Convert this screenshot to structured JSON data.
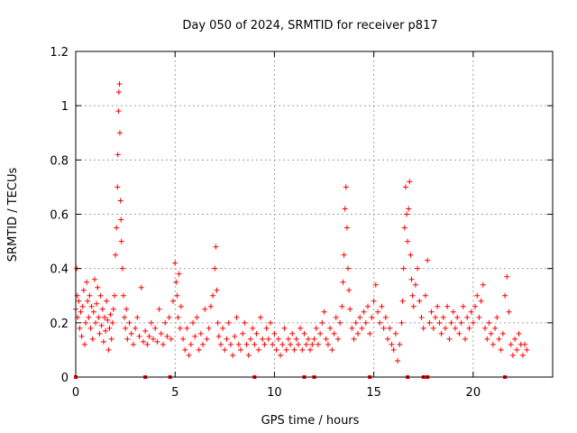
{
  "chart_data": {
    "type": "scatter",
    "title": "Day 050 of 2024, SRMTID for receiver p817",
    "xlabel": "GPS time / hours",
    "ylabel": "SRMTID / TECUs",
    "xlim": [
      0,
      24
    ],
    "ylim": [
      0,
      1.2
    ],
    "xticks": [
      0,
      5,
      10,
      15,
      20
    ],
    "xtick_labels": [
      "0",
      "5",
      "10",
      "15",
      "20"
    ],
    "yticks": [
      0,
      0.2,
      0.4,
      0.6,
      0.8,
      1,
      1.2
    ],
    "ytick_labels": [
      "0",
      "0.2",
      "0.4",
      "0.6",
      "0.8",
      "1",
      "1.2"
    ],
    "grid": true,
    "marker": "plus",
    "color": "#ff0000",
    "series": [
      {
        "name": "SRMTID",
        "points": [
          [
            0.0,
            0.25
          ],
          [
            0.05,
            0.4
          ],
          [
            0.08,
            0.3
          ],
          [
            0.1,
            0.22
          ],
          [
            0.15,
            0.28
          ],
          [
            0.2,
            0.18
          ],
          [
            0.25,
            0.24
          ],
          [
            0.3,
            0.15
          ],
          [
            0.35,
            0.26
          ],
          [
            0.4,
            0.32
          ],
          [
            0.45,
            0.12
          ],
          [
            0.5,
            0.2
          ],
          [
            0.55,
            0.35
          ],
          [
            0.6,
            0.28
          ],
          [
            0.65,
            0.22
          ],
          [
            0.7,
            0.3
          ],
          [
            0.75,
            0.18
          ],
          [
            0.8,
            0.26
          ],
          [
            0.85,
            0.14
          ],
          [
            0.9,
            0.24
          ],
          [
            0.95,
            0.36
          ],
          [
            1.0,
            0.2
          ],
          [
            1.05,
            0.27
          ],
          [
            1.1,
            0.33
          ],
          [
            1.15,
            0.22
          ],
          [
            1.2,
            0.16
          ],
          [
            1.25,
            0.3
          ],
          [
            1.3,
            0.19
          ],
          [
            1.35,
            0.25
          ],
          [
            1.4,
            0.13
          ],
          [
            1.45,
            0.22
          ],
          [
            1.5,
            0.17
          ],
          [
            1.55,
            0.28
          ],
          [
            1.6,
            0.21
          ],
          [
            1.65,
            0.1
          ],
          [
            1.7,
            0.18
          ],
          [
            1.75,
            0.23
          ],
          [
            1.8,
            0.14
          ],
          [
            1.85,
            0.2
          ],
          [
            1.9,
            0.25
          ],
          [
            1.95,
            0.3
          ],
          [
            2.0,
            0.45
          ],
          [
            2.05,
            0.55
          ],
          [
            2.1,
            0.7
          ],
          [
            2.12,
            0.82
          ],
          [
            2.15,
            0.98
          ],
          [
            2.17,
            1.05
          ],
          [
            2.2,
            1.08
          ],
          [
            2.22,
            0.9
          ],
          [
            2.25,
            0.65
          ],
          [
            2.28,
            0.58
          ],
          [
            2.3,
            0.5
          ],
          [
            2.35,
            0.4
          ],
          [
            2.4,
            0.3
          ],
          [
            2.45,
            0.22
          ],
          [
            2.5,
            0.18
          ],
          [
            2.55,
            0.25
          ],
          [
            2.6,
            0.14
          ],
          [
            2.7,
            0.2
          ],
          [
            2.8,
            0.16
          ],
          [
            2.9,
            0.12
          ],
          [
            3.0,
            0.18
          ],
          [
            3.1,
            0.22
          ],
          [
            3.2,
            0.15
          ],
          [
            3.3,
            0.33
          ],
          [
            3.4,
            0.13
          ],
          [
            3.5,
            0.17
          ],
          [
            3.6,
            0.12
          ],
          [
            3.7,
            0.15
          ],
          [
            3.8,
            0.2
          ],
          [
            3.9,
            0.14
          ],
          [
            4.0,
            0.18
          ],
          [
            4.1,
            0.13
          ],
          [
            4.2,
            0.25
          ],
          [
            4.3,
            0.16
          ],
          [
            4.4,
            0.12
          ],
          [
            4.5,
            0.2
          ],
          [
            4.6,
            0.15
          ],
          [
            4.7,
            0.22
          ],
          [
            4.8,
            0.14
          ],
          [
            4.9,
            0.28
          ],
          [
            5.0,
            0.42
          ],
          [
            5.05,
            0.35
          ],
          [
            5.1,
            0.3
          ],
          [
            5.15,
            0.22
          ],
          [
            5.2,
            0.38
          ],
          [
            5.25,
            0.18
          ],
          [
            5.3,
            0.26
          ],
          [
            5.4,
            0.14
          ],
          [
            5.5,
            0.1
          ],
          [
            5.6,
            0.18
          ],
          [
            5.7,
            0.08
          ],
          [
            5.8,
            0.12
          ],
          [
            5.9,
            0.2
          ],
          [
            6.0,
            0.15
          ],
          [
            6.1,
            0.22
          ],
          [
            6.2,
            0.1
          ],
          [
            6.3,
            0.16
          ],
          [
            6.4,
            0.12
          ],
          [
            6.5,
            0.25
          ],
          [
            6.6,
            0.14
          ],
          [
            6.7,
            0.18
          ],
          [
            6.8,
            0.26
          ],
          [
            6.9,
            0.3
          ],
          [
            7.0,
            0.4
          ],
          [
            7.05,
            0.48
          ],
          [
            7.1,
            0.32
          ],
          [
            7.15,
            0.2
          ],
          [
            7.2,
            0.15
          ],
          [
            7.3,
            0.12
          ],
          [
            7.4,
            0.18
          ],
          [
            7.5,
            0.1
          ],
          [
            7.6,
            0.14
          ],
          [
            7.7,
            0.2
          ],
          [
            7.8,
            0.12
          ],
          [
            7.9,
            0.08
          ],
          [
            8.0,
            0.15
          ],
          [
            8.1,
            0.22
          ],
          [
            8.2,
            0.12
          ],
          [
            8.3,
            0.1
          ],
          [
            8.4,
            0.16
          ],
          [
            8.5,
            0.2
          ],
          [
            8.6,
            0.12
          ],
          [
            8.7,
            0.08
          ],
          [
            8.8,
            0.14
          ],
          [
            8.9,
            0.18
          ],
          [
            9.0,
            0.12
          ],
          [
            9.1,
            0.16
          ],
          [
            9.2,
            0.1
          ],
          [
            9.3,
            0.22
          ],
          [
            9.4,
            0.14
          ],
          [
            9.5,
            0.12
          ],
          [
            9.6,
            0.18
          ],
          [
            9.7,
            0.14
          ],
          [
            9.8,
            0.2
          ],
          [
            9.9,
            0.12
          ],
          [
            10.0,
            0.16
          ],
          [
            10.1,
            0.1
          ],
          [
            10.2,
            0.14
          ],
          [
            10.3,
            0.08
          ],
          [
            10.4,
            0.12
          ],
          [
            10.5,
            0.18
          ],
          [
            10.6,
            0.1
          ],
          [
            10.7,
            0.14
          ],
          [
            10.8,
            0.12
          ],
          [
            10.9,
            0.16
          ],
          [
            11.0,
            0.1
          ],
          [
            11.1,
            0.14
          ],
          [
            11.2,
            0.12
          ],
          [
            11.3,
            0.18
          ],
          [
            11.4,
            0.1
          ],
          [
            11.5,
            0.16
          ],
          [
            11.6,
            0.12
          ],
          [
            11.7,
            0.14
          ],
          [
            11.8,
            0.1
          ],
          [
            11.9,
            0.12
          ],
          [
            12.0,
            0.14
          ],
          [
            12.1,
            0.18
          ],
          [
            12.2,
            0.12
          ],
          [
            12.3,
            0.16
          ],
          [
            12.4,
            0.2
          ],
          [
            12.5,
            0.24
          ],
          [
            12.6,
            0.14
          ],
          [
            12.7,
            0.12
          ],
          [
            12.8,
            0.18
          ],
          [
            12.9,
            0.1
          ],
          [
            13.0,
            0.16
          ],
          [
            13.1,
            0.22
          ],
          [
            13.2,
            0.14
          ],
          [
            13.3,
            0.2
          ],
          [
            13.4,
            0.26
          ],
          [
            13.45,
            0.35
          ],
          [
            13.5,
            0.45
          ],
          [
            13.55,
            0.62
          ],
          [
            13.6,
            0.7
          ],
          [
            13.65,
            0.55
          ],
          [
            13.7,
            0.4
          ],
          [
            13.75,
            0.32
          ],
          [
            13.8,
            0.25
          ],
          [
            13.9,
            0.18
          ],
          [
            14.0,
            0.14
          ],
          [
            14.1,
            0.2
          ],
          [
            14.2,
            0.16
          ],
          [
            14.3,
            0.22
          ],
          [
            14.4,
            0.18
          ],
          [
            14.5,
            0.24
          ],
          [
            14.6,
            0.2
          ],
          [
            14.7,
            0.26
          ],
          [
            14.8,
            0.16
          ],
          [
            14.9,
            0.22
          ],
          [
            15.0,
            0.28
          ],
          [
            15.1,
            0.34
          ],
          [
            15.2,
            0.24
          ],
          [
            15.3,
            0.2
          ],
          [
            15.4,
            0.26
          ],
          [
            15.5,
            0.18
          ],
          [
            15.6,
            0.22
          ],
          [
            15.7,
            0.14
          ],
          [
            15.8,
            0.18
          ],
          [
            15.9,
            0.12
          ],
          [
            16.0,
            0.1
          ],
          [
            16.1,
            0.16
          ],
          [
            16.2,
            0.06
          ],
          [
            16.3,
            0.12
          ],
          [
            16.4,
            0.2
          ],
          [
            16.45,
            0.28
          ],
          [
            16.5,
            0.4
          ],
          [
            16.55,
            0.55
          ],
          [
            16.6,
            0.7
          ],
          [
            16.65,
            0.6
          ],
          [
            16.7,
            0.5
          ],
          [
            16.75,
            0.62
          ],
          [
            16.8,
            0.72
          ],
          [
            16.85,
            0.45
          ],
          [
            16.9,
            0.36
          ],
          [
            16.95,
            0.3
          ],
          [
            17.0,
            0.26
          ],
          [
            17.1,
            0.34
          ],
          [
            17.2,
            0.4
          ],
          [
            17.3,
            0.28
          ],
          [
            17.4,
            0.22
          ],
          [
            17.5,
            0.18
          ],
          [
            17.6,
            0.3
          ],
          [
            17.7,
            0.43
          ],
          [
            17.8,
            0.2
          ],
          [
            17.9,
            0.24
          ],
          [
            18.0,
            0.18
          ],
          [
            18.1,
            0.22
          ],
          [
            18.2,
            0.26
          ],
          [
            18.3,
            0.2
          ],
          [
            18.4,
            0.16
          ],
          [
            18.5,
            0.22
          ],
          [
            18.6,
            0.18
          ],
          [
            18.7,
            0.26
          ],
          [
            18.8,
            0.14
          ],
          [
            18.9,
            0.2
          ],
          [
            19.0,
            0.24
          ],
          [
            19.1,
            0.18
          ],
          [
            19.2,
            0.22
          ],
          [
            19.3,
            0.16
          ],
          [
            19.4,
            0.2
          ],
          [
            19.5,
            0.26
          ],
          [
            19.6,
            0.14
          ],
          [
            19.7,
            0.22
          ],
          [
            19.8,
            0.18
          ],
          [
            19.9,
            0.24
          ],
          [
            20.0,
            0.2
          ],
          [
            20.1,
            0.26
          ],
          [
            20.2,
            0.3
          ],
          [
            20.3,
            0.22
          ],
          [
            20.4,
            0.28
          ],
          [
            20.5,
            0.34
          ],
          [
            20.6,
            0.18
          ],
          [
            20.7,
            0.14
          ],
          [
            20.8,
            0.2
          ],
          [
            20.9,
            0.16
          ],
          [
            21.0,
            0.12
          ],
          [
            21.1,
            0.18
          ],
          [
            21.2,
            0.22
          ],
          [
            21.3,
            0.14
          ],
          [
            21.4,
            0.1
          ],
          [
            21.5,
            0.16
          ],
          [
            21.6,
            0.3
          ],
          [
            21.7,
            0.37
          ],
          [
            21.8,
            0.24
          ],
          [
            21.9,
            0.12
          ],
          [
            22.0,
            0.08
          ],
          [
            22.1,
            0.14
          ],
          [
            22.2,
            0.1
          ],
          [
            22.3,
            0.16
          ],
          [
            22.4,
            0.12
          ],
          [
            22.5,
            0.08
          ],
          [
            22.6,
            0.12
          ],
          [
            22.7,
            0.1
          ]
        ]
      }
    ],
    "zero_points_x": [
      0.0,
      3.5,
      4.75,
      9.0,
      11.5,
      12.0,
      14.8,
      16.7,
      17.5,
      17.7,
      21.6
    ]
  }
}
